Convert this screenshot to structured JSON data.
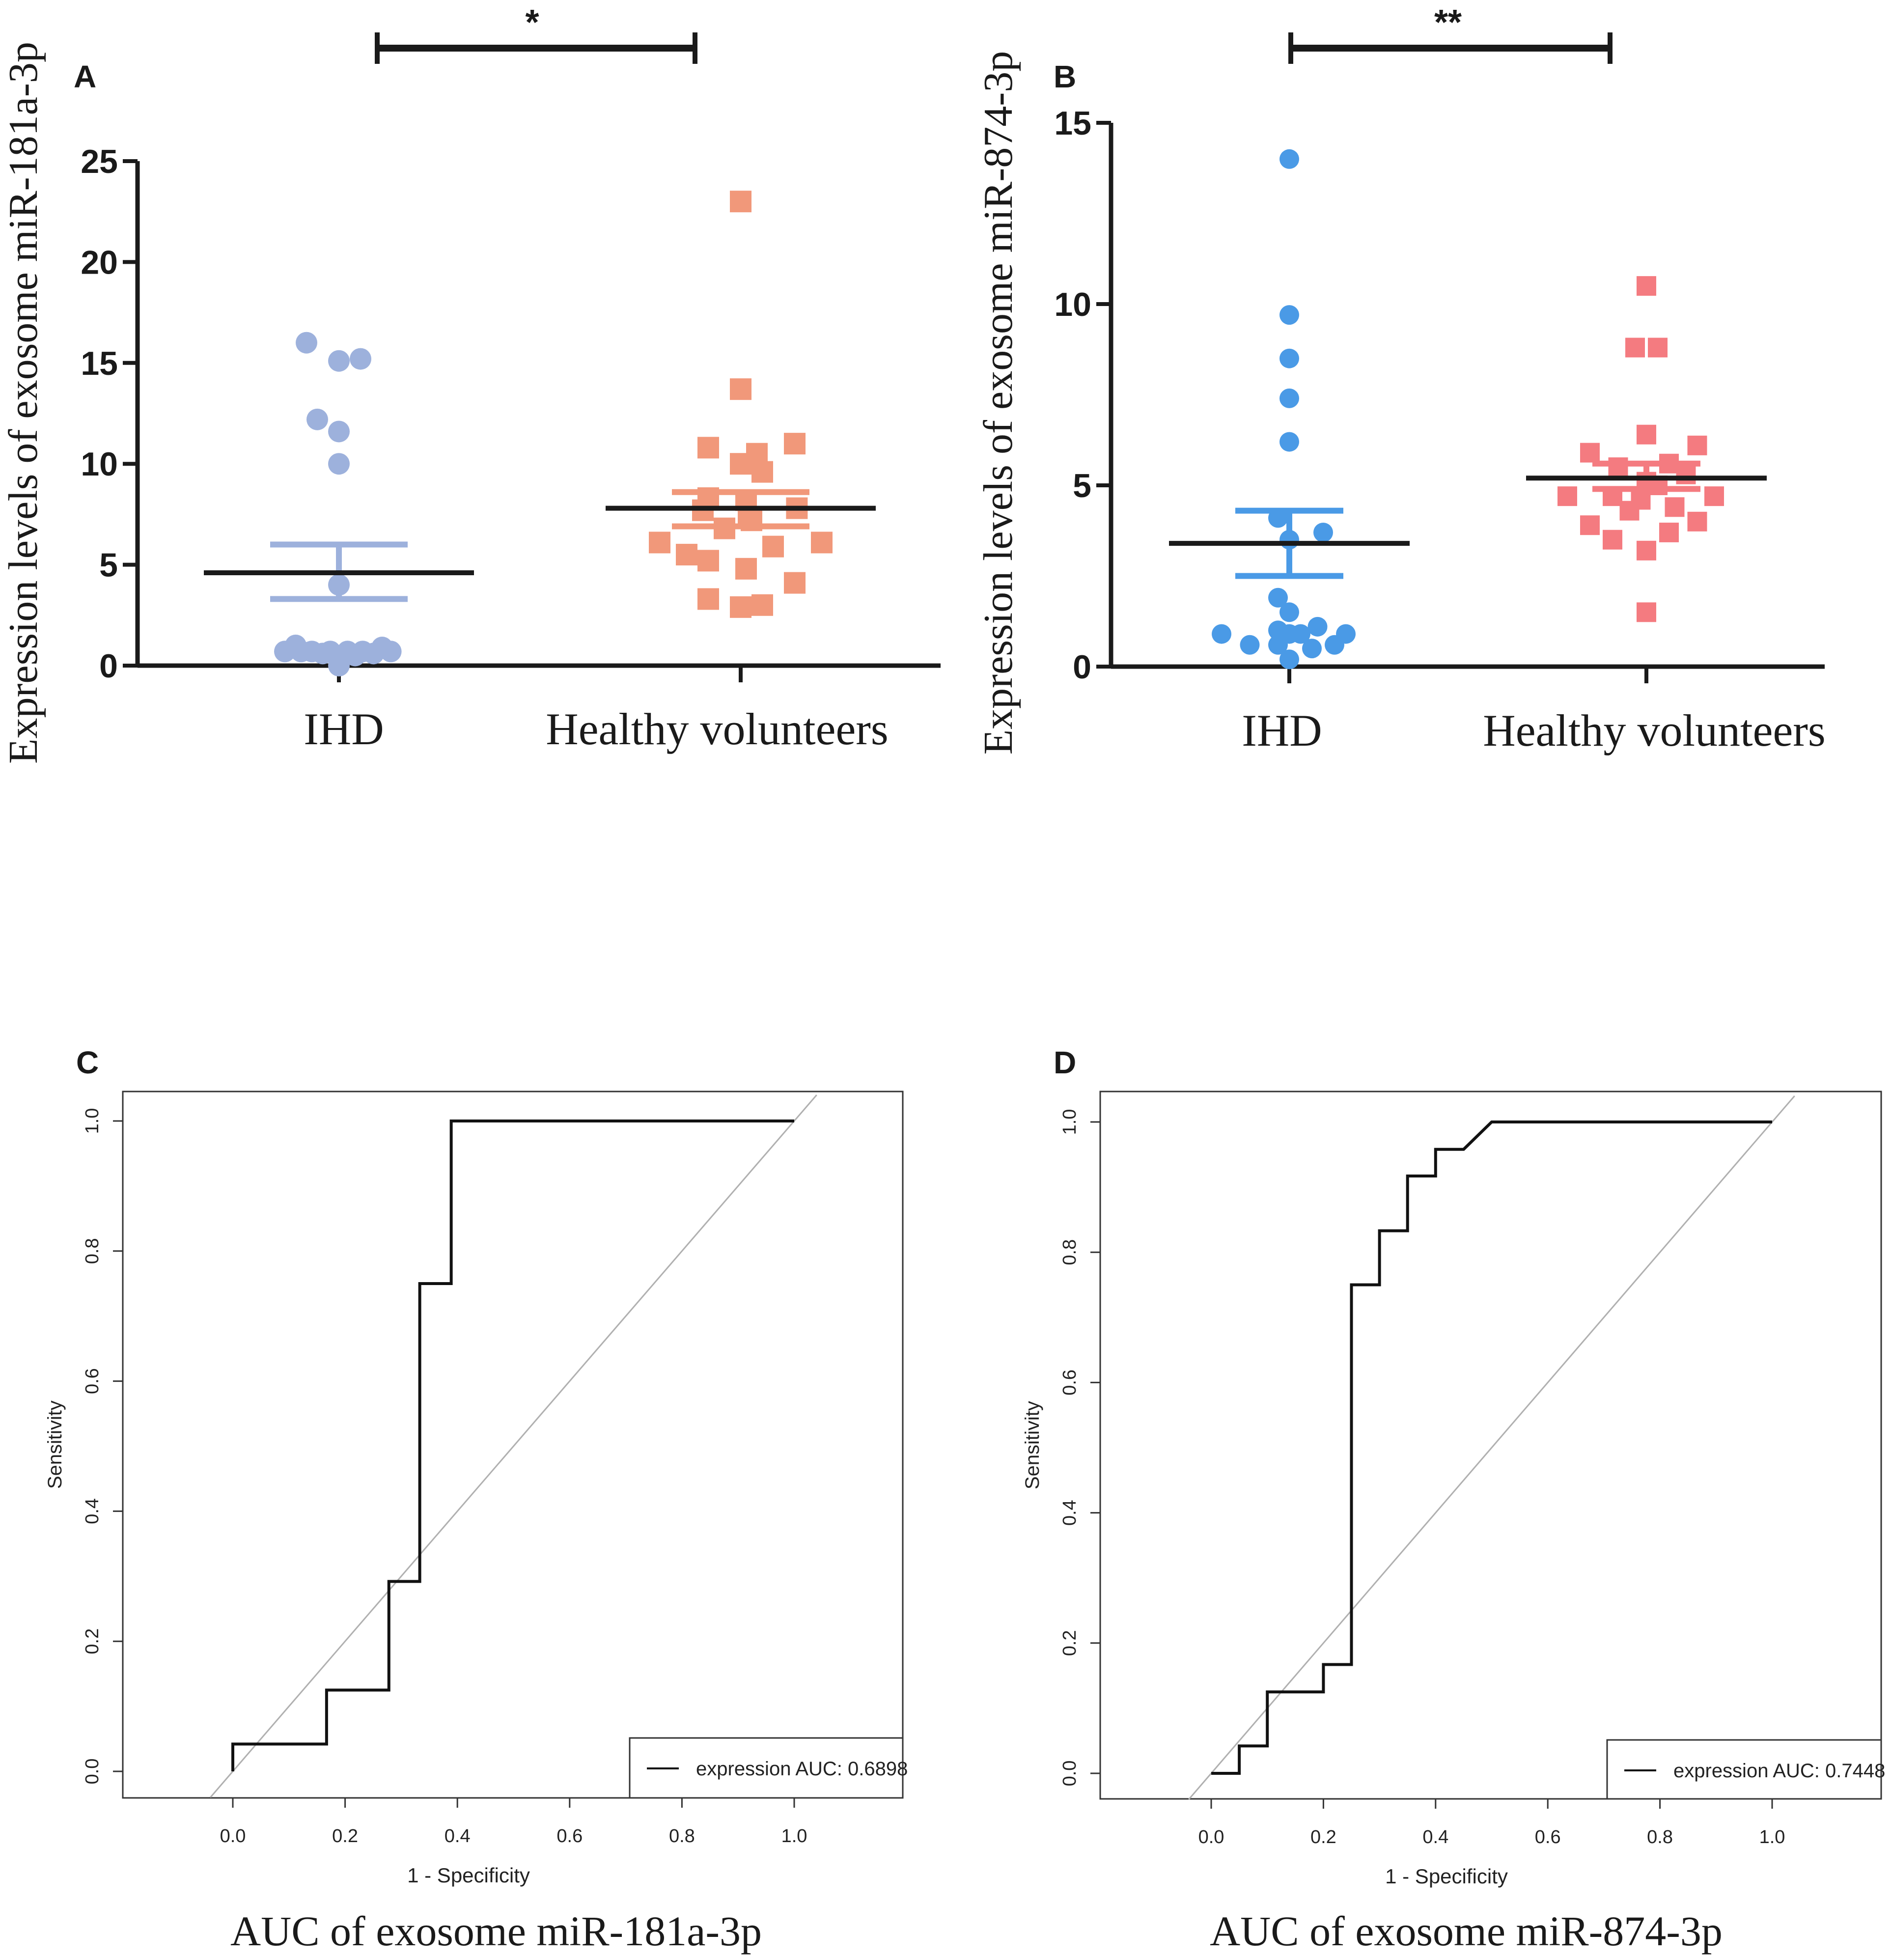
{
  "colors": {
    "axis": "#1a1a1a",
    "ihd_a": "#9db1dc",
    "hv_a": "#f1987a",
    "ihd_b": "#4a9ae6",
    "hv_b": "#f47b80",
    "roc_line": "#111111",
    "diagonal": "#b0b0b0"
  },
  "chart_data": [
    {
      "panel": "A",
      "type": "scatter",
      "ylabel": "Expression levels of exosome miR-181a-3p",
      "ylim": [
        0,
        25
      ],
      "yticks": [
        "0",
        "5",
        "10",
        "15",
        "20",
        "25"
      ],
      "categories": [
        "IHD",
        "Healthy volunteers"
      ],
      "significance": "*",
      "series": [
        {
          "name": "IHD",
          "marker": "circle",
          "mean": 4.6,
          "sem_upper": 6.0,
          "sem_lower": 3.3,
          "points": [
            {
              "x": -0.3,
              "y": 16.0
            },
            {
              "x": 0.0,
              "y": 15.1
            },
            {
              "x": 0.2,
              "y": 15.2
            },
            {
              "x": -0.2,
              "y": 12.2
            },
            {
              "x": 0.0,
              "y": 11.6
            },
            {
              "x": 0.0,
              "y": 10.0
            },
            {
              "x": 0.0,
              "y": 4.0
            },
            {
              "x": -0.5,
              "y": 0.7
            },
            {
              "x": -0.4,
              "y": 1.0
            },
            {
              "x": -0.35,
              "y": 0.7
            },
            {
              "x": -0.25,
              "y": 0.7
            },
            {
              "x": -0.15,
              "y": 0.6
            },
            {
              "x": -0.08,
              "y": 0.7
            },
            {
              "x": 0.0,
              "y": 0.0
            },
            {
              "x": 0.08,
              "y": 0.7
            },
            {
              "x": 0.15,
              "y": 0.5
            },
            {
              "x": 0.22,
              "y": 0.7
            },
            {
              "x": 0.32,
              "y": 0.6
            },
            {
              "x": 0.4,
              "y": 0.9
            },
            {
              "x": 0.48,
              "y": 0.7
            }
          ]
        },
        {
          "name": "Healthy volunteers",
          "marker": "square",
          "mean": 7.8,
          "sem_upper": 8.6,
          "sem_lower": 6.9,
          "points": [
            {
              "x": 0.0,
              "y": 23.0
            },
            {
              "x": 0.0,
              "y": 13.7
            },
            {
              "x": -0.3,
              "y": 10.8
            },
            {
              "x": 0.15,
              "y": 10.5
            },
            {
              "x": 0.5,
              "y": 11.0
            },
            {
              "x": 0.0,
              "y": 10.0
            },
            {
              "x": 0.2,
              "y": 9.6
            },
            {
              "x": -0.3,
              "y": 8.3
            },
            {
              "x": -0.35,
              "y": 7.7
            },
            {
              "x": 0.05,
              "y": 8.2
            },
            {
              "x": 0.52,
              "y": 7.8
            },
            {
              "x": 0.1,
              "y": 7.2
            },
            {
              "x": -0.15,
              "y": 6.8
            },
            {
              "x": -0.75,
              "y": 6.1
            },
            {
              "x": -0.5,
              "y": 5.5
            },
            {
              "x": 0.3,
              "y": 5.9
            },
            {
              "x": 0.75,
              "y": 6.1
            },
            {
              "x": -0.3,
              "y": 5.2
            },
            {
              "x": 0.05,
              "y": 4.8
            },
            {
              "x": 0.5,
              "y": 4.1
            },
            {
              "x": -0.3,
              "y": 3.3
            },
            {
              "x": 0.0,
              "y": 2.9
            },
            {
              "x": 0.2,
              "y": 3.0
            }
          ]
        }
      ]
    },
    {
      "panel": "B",
      "type": "scatter",
      "ylabel": "Expression levels of exosome miR-874-3p",
      "ylim": [
        0,
        15
      ],
      "yticks": [
        "0",
        "5",
        "10",
        "15"
      ],
      "categories": [
        "IHD",
        "Healthy volunteers"
      ],
      "significance": "**",
      "series": [
        {
          "name": "IHD",
          "marker": "circle",
          "mean": 3.4,
          "sem_upper": 4.3,
          "sem_lower": 2.5,
          "points": [
            {
              "x": 0.0,
              "y": 14.0
            },
            {
              "x": 0.0,
              "y": 9.7
            },
            {
              "x": 0.0,
              "y": 8.5
            },
            {
              "x": 0.0,
              "y": 7.4
            },
            {
              "x": 0.0,
              "y": 6.2
            },
            {
              "x": -0.1,
              "y": 4.1
            },
            {
              "x": 0.3,
              "y": 3.7
            },
            {
              "x": 0.0,
              "y": 3.5
            },
            {
              "x": -0.1,
              "y": 1.9
            },
            {
              "x": 0.0,
              "y": 1.5
            },
            {
              "x": -0.6,
              "y": 0.9
            },
            {
              "x": -0.35,
              "y": 0.6
            },
            {
              "x": -0.1,
              "y": 0.6
            },
            {
              "x": 0.0,
              "y": 0.9
            },
            {
              "x": 0.1,
              "y": 0.9
            },
            {
              "x": 0.25,
              "y": 1.1
            },
            {
              "x": 0.5,
              "y": 0.9
            },
            {
              "x": 0.4,
              "y": 0.6
            },
            {
              "x": 0.2,
              "y": 0.5
            },
            {
              "x": -0.1,
              "y": 1.0
            },
            {
              "x": 0.0,
              "y": 0.2
            }
          ]
        },
        {
          "name": "Healthy volunteers",
          "marker": "square",
          "mean": 5.2,
          "sem_upper": 5.6,
          "sem_lower": 4.9,
          "points": [
            {
              "x": 0.0,
              "y": 10.5
            },
            {
              "x": -0.1,
              "y": 8.8
            },
            {
              "x": 0.1,
              "y": 8.8
            },
            {
              "x": 0.0,
              "y": 6.4
            },
            {
              "x": 0.45,
              "y": 6.1
            },
            {
              "x": -0.5,
              "y": 5.9
            },
            {
              "x": 0.2,
              "y": 5.6
            },
            {
              "x": -0.25,
              "y": 5.5
            },
            {
              "x": 0.35,
              "y": 5.3
            },
            {
              "x": 0.0,
              "y": 5.1
            },
            {
              "x": 0.1,
              "y": 5.0
            },
            {
              "x": -0.7,
              "y": 4.7
            },
            {
              "x": -0.3,
              "y": 4.7
            },
            {
              "x": 0.6,
              "y": 4.7
            },
            {
              "x": -0.05,
              "y": 4.6
            },
            {
              "x": 0.25,
              "y": 4.4
            },
            {
              "x": -0.15,
              "y": 4.3
            },
            {
              "x": -0.5,
              "y": 3.9
            },
            {
              "x": 0.2,
              "y": 3.7
            },
            {
              "x": 0.45,
              "y": 4.0
            },
            {
              "x": -0.3,
              "y": 3.5
            },
            {
              "x": 0.0,
              "y": 3.2
            },
            {
              "x": 0.0,
              "y": 1.5
            }
          ]
        }
      ]
    },
    {
      "panel": "C",
      "type": "line",
      "title": "AUC of  exosome miR-181a-3p",
      "xlabel": "1 - Specificity",
      "ylabel": "Sensitivity",
      "xlim": [
        -0.2,
        1.2
      ],
      "ylim": [
        -0.04,
        1.04
      ],
      "xticks": [
        "0.0",
        "0.2",
        "0.4",
        "0.6",
        "0.8",
        "1.0"
      ],
      "yticks": [
        "0.0",
        "0.2",
        "0.4",
        "0.6",
        "0.8",
        "1.0"
      ],
      "legend": "expression AUC: 0.6898",
      "legend_position": "bottom-right",
      "roc": {
        "x": [
          0.0,
          0.0,
          0.167,
          0.167,
          0.278,
          0.278,
          0.333,
          0.333,
          0.389,
          0.389,
          1.0
        ],
        "y": [
          0.0,
          0.042,
          0.042,
          0.125,
          0.125,
          0.292,
          0.292,
          0.75,
          0.75,
          1.0,
          1.0
        ]
      }
    },
    {
      "panel": "D",
      "type": "line",
      "title": "AUC of exosome miR-874-3p",
      "xlabel": "1 - Specificity",
      "ylabel": "Sensitivity",
      "xlim": [
        -0.2,
        1.2
      ],
      "ylim": [
        -0.04,
        1.04
      ],
      "xticks": [
        "0.0",
        "0.2",
        "0.4",
        "0.6",
        "0.8",
        "1.0"
      ],
      "yticks": [
        "0.0",
        "0.2",
        "0.4",
        "0.6",
        "0.8",
        "1.0"
      ],
      "legend": "expression AUC: 0.7448",
      "legend_position": "bottom-right",
      "roc": {
        "x": [
          0.0,
          0.05,
          0.05,
          0.1,
          0.1,
          0.2,
          0.2,
          0.25,
          0.25,
          0.3,
          0.3,
          0.35,
          0.35,
          0.4,
          0.4,
          0.45,
          0.5,
          1.0
        ],
        "y": [
          0.0,
          0.0,
          0.042,
          0.042,
          0.125,
          0.125,
          0.167,
          0.167,
          0.75,
          0.75,
          0.833,
          0.833,
          0.917,
          0.917,
          0.958,
          0.958,
          1.0,
          1.0
        ]
      }
    }
  ]
}
